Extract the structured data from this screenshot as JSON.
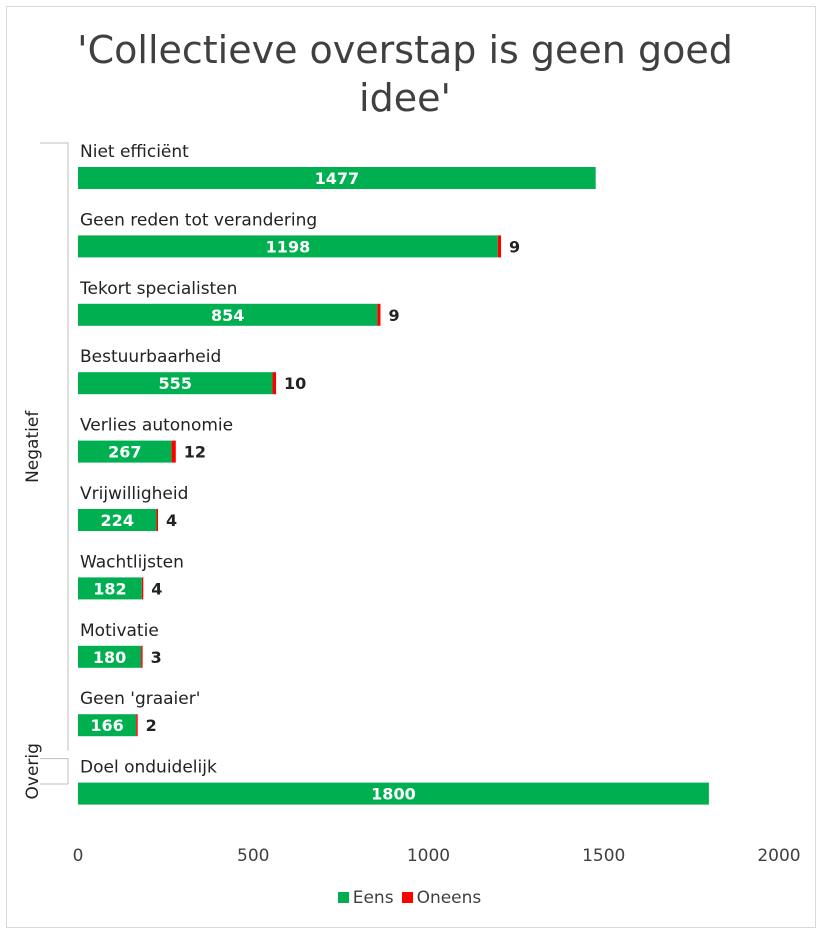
{
  "chart_data": {
    "type": "bar",
    "orientation": "horizontal",
    "stacked": true,
    "title": "'Collectieve overstap is geen goed idee'",
    "xlim": [
      0,
      2000
    ],
    "xticks": [
      "0",
      "500",
      "1000",
      "1500",
      "2000"
    ],
    "grid": false,
    "legend_position": "bottom",
    "groups": [
      {
        "label": "Negatief",
        "categories": [
          "Niet efficiënt",
          "Geen reden tot verandering",
          "Tekort specialisten",
          "Bestuurbaarheid",
          "Verlies autonomie",
          "Vrijwilligheid",
          "Wachtlijsten",
          "Motivatie",
          "Geen 'graaier'"
        ]
      },
      {
        "label": "Overig",
        "categories": [
          "Doel onduidelijk"
        ]
      }
    ],
    "categories": [
      "Niet efficiënt",
      "Geen reden tot verandering",
      "Tekort specialisten",
      "Bestuurbaarheid",
      "Verlies autonomie",
      "Vrijwilligheid",
      "Wachtlijsten",
      "Motivatie",
      "Geen 'graaier'",
      "Doel onduidelijk"
    ],
    "series": [
      {
        "name": "Eens",
        "color": "#00b050",
        "values": [
          1477,
          1198,
          854,
          555,
          267,
          224,
          182,
          180,
          166,
          1800
        ]
      },
      {
        "name": "Oneens",
        "color": "#ff0000",
        "values": [
          null,
          9,
          9,
          10,
          12,
          4,
          4,
          3,
          2,
          null
        ]
      }
    ]
  }
}
